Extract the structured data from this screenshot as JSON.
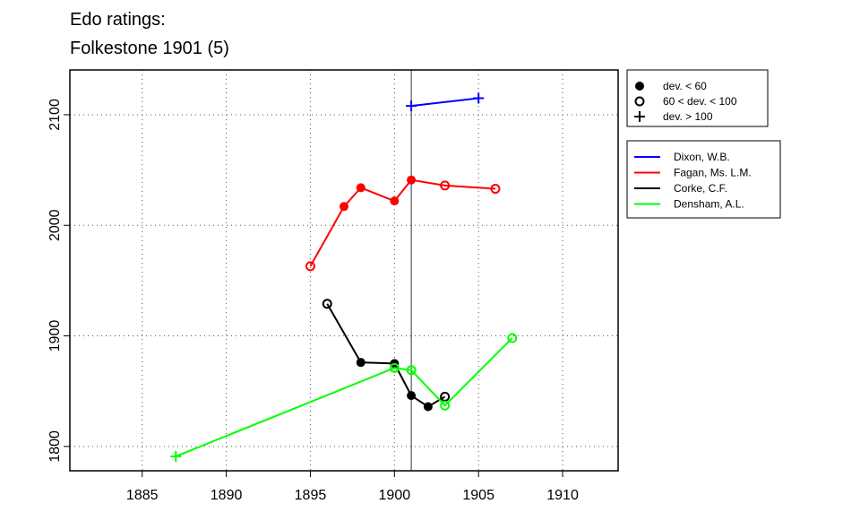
{
  "chart_data": {
    "type": "line",
    "title_line1": "Edo ratings:",
    "title_line2": "Folkestone 1901 (5)",
    "xlabel": "",
    "ylabel": "",
    "xlim": [
      1880.7,
      1913.3
    ],
    "ylim": [
      1778,
      2140.5
    ],
    "xticks": [
      1885,
      1890,
      1895,
      1900,
      1905,
      1910
    ],
    "yticks": [
      1800,
      1900,
      2000,
      2100
    ],
    "grid": true,
    "reference_line_x": 1901,
    "marker_legend": {
      "placement": "top-right-outside",
      "entries": [
        {
          "label": "dev. < 60",
          "marker": "filled"
        },
        {
          "label": "60 < dev. < 100",
          "marker": "open"
        },
        {
          "label": "dev. > 100",
          "marker": "plus"
        }
      ]
    },
    "series": [
      {
        "name": "Dixon, W.B.",
        "color": "#0000ff",
        "points": [
          {
            "x": 1901,
            "y": 2108,
            "m": "plus"
          },
          {
            "x": 1905,
            "y": 2115,
            "m": "plus"
          }
        ]
      },
      {
        "name": "Fagan, Ms. L.M.",
        "color": "#ff0000",
        "points": [
          {
            "x": 1895,
            "y": 1963,
            "m": "open"
          },
          {
            "x": 1897,
            "y": 2017,
            "m": "filled"
          },
          {
            "x": 1898,
            "y": 2034,
            "m": "filled"
          },
          {
            "x": 1900,
            "y": 2022,
            "m": "filled"
          },
          {
            "x": 1901,
            "y": 2041,
            "m": "filled"
          },
          {
            "x": 1903,
            "y": 2036,
            "m": "open"
          },
          {
            "x": 1906,
            "y": 2033,
            "m": "open"
          }
        ]
      },
      {
        "name": "Corke, C.F.",
        "color": "#000000",
        "points": [
          {
            "x": 1896,
            "y": 1929,
            "m": "open"
          },
          {
            "x": 1898,
            "y": 1876,
            "m": "filled"
          },
          {
            "x": 1900,
            "y": 1875,
            "m": "filled"
          },
          {
            "x": 1901,
            "y": 1846,
            "m": "filled"
          },
          {
            "x": 1902,
            "y": 1836,
            "m": "filled"
          },
          {
            "x": 1903,
            "y": 1845,
            "m": "open"
          }
        ]
      },
      {
        "name": "Densham, A.L.",
        "color": "#00ff00",
        "points": [
          {
            "x": 1887,
            "y": 1791,
            "m": "plus"
          },
          {
            "x": 1900,
            "y": 1871,
            "m": "open"
          },
          {
            "x": 1901,
            "y": 1869,
            "m": "open"
          },
          {
            "x": 1903,
            "y": 1837,
            "m": "open"
          },
          {
            "x": 1907,
            "y": 1898,
            "m": "open"
          }
        ]
      }
    ]
  }
}
